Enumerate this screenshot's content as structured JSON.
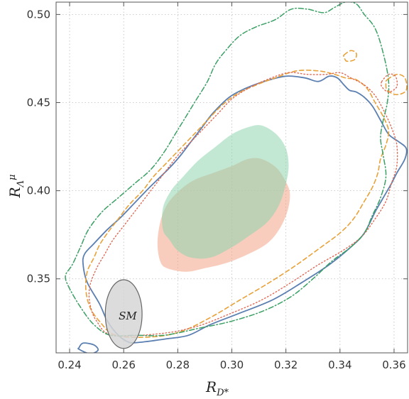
{
  "chart_data": {
    "type": "contour",
    "xlabel": {
      "main": "R",
      "sub": "D*"
    },
    "ylabel": {
      "main": "R",
      "sub": "Λ",
      "sup": "μ"
    },
    "xlim": [
      0.235,
      0.365
    ],
    "ylim": [
      0.308,
      0.507
    ],
    "xticks": [
      "0.24",
      "0.26",
      "0.28",
      "0.30",
      "0.32",
      "0.34",
      "0.36"
    ],
    "yticks": [
      "0.35",
      "0.40",
      "0.45",
      "0.50"
    ],
    "grid": true,
    "annotations": [
      {
        "text": "SM",
        "x": 0.2615,
        "y": 0.329
      }
    ],
    "sm_ellipse": {
      "center": [
        0.26,
        0.33
      ],
      "rx": 0.0068,
      "ry": 0.0195,
      "color": "#d6d6d6",
      "edge": "#666666"
    },
    "filled_regions": [
      {
        "color": "#f4a487",
        "opacity": 0.55,
        "points": [
          [
            0.276,
            0.356
          ],
          [
            0.2735,
            0.36
          ],
          [
            0.2725,
            0.37
          ],
          [
            0.2735,
            0.382
          ],
          [
            0.276,
            0.392
          ],
          [
            0.2805,
            0.4
          ],
          [
            0.286,
            0.406
          ],
          [
            0.293,
            0.41
          ],
          [
            0.3,
            0.414
          ],
          [
            0.306,
            0.418
          ],
          [
            0.311,
            0.418
          ],
          [
            0.3165,
            0.413
          ],
          [
            0.32,
            0.405
          ],
          [
            0.3215,
            0.398
          ],
          [
            0.3205,
            0.388
          ],
          [
            0.3175,
            0.378
          ],
          [
            0.313,
            0.37
          ],
          [
            0.306,
            0.364
          ],
          [
            0.298,
            0.359
          ],
          [
            0.29,
            0.356
          ],
          [
            0.283,
            0.354
          ]
        ]
      },
      {
        "color": "#8fd6ae",
        "opacity": 0.55,
        "points": [
          [
            0.277,
            0.372
          ],
          [
            0.2745,
            0.378
          ],
          [
            0.2745,
            0.39
          ],
          [
            0.2775,
            0.4
          ],
          [
            0.282,
            0.408
          ],
          [
            0.2875,
            0.417
          ],
          [
            0.294,
            0.425
          ],
          [
            0.3,
            0.432
          ],
          [
            0.306,
            0.436
          ],
          [
            0.311,
            0.437
          ],
          [
            0.3165,
            0.432
          ],
          [
            0.32,
            0.424
          ],
          [
            0.321,
            0.414
          ],
          [
            0.32,
            0.404
          ],
          [
            0.3175,
            0.392
          ],
          [
            0.313,
            0.382
          ],
          [
            0.306,
            0.374
          ],
          [
            0.299,
            0.367
          ],
          [
            0.292,
            0.362
          ],
          [
            0.285,
            0.362
          ],
          [
            0.28,
            0.366
          ]
        ]
      }
    ],
    "contours": [
      {
        "style": "solid",
        "color": "#5b7fb1",
        "width": 1.8,
        "points": [
          [
            0.258,
            0.318
          ],
          [
            0.254,
            0.326
          ],
          [
            0.251,
            0.336
          ],
          [
            0.2465,
            0.348
          ],
          [
            0.245,
            0.358
          ],
          [
            0.2455,
            0.364
          ],
          [
            0.249,
            0.37
          ],
          [
            0.254,
            0.378
          ],
          [
            0.259,
            0.385
          ],
          [
            0.264,
            0.393
          ],
          [
            0.269,
            0.401
          ],
          [
            0.273,
            0.407
          ],
          [
            0.277,
            0.413
          ],
          [
            0.281,
            0.42
          ],
          [
            0.285,
            0.428
          ],
          [
            0.289,
            0.436
          ],
          [
            0.293,
            0.444
          ],
          [
            0.299,
            0.453
          ],
          [
            0.305,
            0.458
          ],
          [
            0.312,
            0.462
          ],
          [
            0.32,
            0.465
          ],
          [
            0.327,
            0.464
          ],
          [
            0.332,
            0.462
          ],
          [
            0.336,
            0.465
          ],
          [
            0.339,
            0.464
          ],
          [
            0.3415,
            0.46
          ],
          [
            0.3435,
            0.457
          ],
          [
            0.346,
            0.456
          ],
          [
            0.349,
            0.453
          ],
          [
            0.352,
            0.448
          ],
          [
            0.355,
            0.44
          ],
          [
            0.358,
            0.432
          ],
          [
            0.3615,
            0.428
          ],
          [
            0.3645,
            0.424
          ],
          [
            0.364,
            0.418
          ],
          [
            0.361,
            0.41
          ],
          [
            0.359,
            0.404
          ],
          [
            0.356,
            0.396
          ],
          [
            0.353,
            0.388
          ],
          [
            0.349,
            0.376
          ],
          [
            0.344,
            0.368
          ],
          [
            0.336,
            0.358
          ],
          [
            0.326,
            0.348
          ],
          [
            0.315,
            0.338
          ],
          [
            0.302,
            0.33
          ],
          [
            0.292,
            0.324
          ],
          [
            0.284,
            0.318
          ],
          [
            0.276,
            0.316
          ],
          [
            0.266,
            0.314
          ],
          [
            0.262,
            0.314
          ]
        ]
      },
      {
        "style": "solid",
        "color": "#5b7fb1",
        "width": 1.8,
        "points": [
          [
            0.2435,
            0.31
          ],
          [
            0.2475,
            0.3075
          ],
          [
            0.2505,
            0.3095
          ],
          [
            0.249,
            0.3125
          ],
          [
            0.245,
            0.3135
          ],
          [
            0.2435,
            0.311
          ]
        ]
      },
      {
        "style": "dashed",
        "color": "#e8a23a",
        "width": 1.6,
        "points": [
          [
            0.257,
            0.318
          ],
          [
            0.251,
            0.326
          ],
          [
            0.2475,
            0.334
          ],
          [
            0.246,
            0.344
          ],
          [
            0.2465,
            0.354
          ],
          [
            0.249,
            0.362
          ],
          [
            0.251,
            0.369
          ],
          [
            0.254,
            0.376
          ],
          [
            0.258,
            0.384
          ],
          [
            0.262,
            0.392
          ],
          [
            0.267,
            0.4
          ],
          [
            0.271,
            0.408
          ],
          [
            0.276,
            0.416
          ],
          [
            0.281,
            0.424
          ],
          [
            0.286,
            0.432
          ],
          [
            0.291,
            0.44
          ],
          [
            0.296,
            0.448
          ],
          [
            0.302,
            0.455
          ],
          [
            0.309,
            0.46
          ],
          [
            0.316,
            0.464
          ],
          [
            0.324,
            0.468
          ],
          [
            0.332,
            0.468
          ],
          [
            0.338,
            0.466
          ],
          [
            0.342,
            0.464
          ],
          [
            0.346,
            0.463
          ],
          [
            0.35,
            0.458
          ],
          [
            0.353,
            0.45
          ],
          [
            0.356,
            0.442
          ],
          [
            0.358,
            0.434
          ],
          [
            0.357,
            0.426
          ],
          [
            0.355,
            0.418
          ],
          [
            0.354,
            0.41
          ],
          [
            0.352,
            0.402
          ],
          [
            0.349,
            0.394
          ],
          [
            0.345,
            0.384
          ],
          [
            0.34,
            0.376
          ],
          [
            0.333,
            0.368
          ],
          [
            0.324,
            0.358
          ],
          [
            0.314,
            0.348
          ],
          [
            0.303,
            0.338
          ],
          [
            0.292,
            0.328
          ],
          [
            0.281,
            0.32
          ],
          [
            0.27,
            0.317
          ]
        ]
      },
      {
        "style": "dotted",
        "color": "#e06a55",
        "width": 1.4,
        "points": [
          [
            0.256,
            0.318
          ],
          [
            0.25,
            0.326
          ],
          [
            0.2475,
            0.336
          ],
          [
            0.2475,
            0.346
          ],
          [
            0.25,
            0.356
          ],
          [
            0.253,
            0.364
          ],
          [
            0.256,
            0.372
          ],
          [
            0.26,
            0.38
          ],
          [
            0.264,
            0.388
          ],
          [
            0.268,
            0.396
          ],
          [
            0.272,
            0.404
          ],
          [
            0.276,
            0.412
          ],
          [
            0.28,
            0.42
          ],
          [
            0.285,
            0.428
          ],
          [
            0.29,
            0.436
          ],
          [
            0.295,
            0.444
          ],
          [
            0.3,
            0.452
          ],
          [
            0.306,
            0.458
          ],
          [
            0.313,
            0.463
          ],
          [
            0.321,
            0.467
          ],
          [
            0.328,
            0.466
          ],
          [
            0.335,
            0.466
          ],
          [
            0.34,
            0.467
          ],
          [
            0.344,
            0.464
          ],
          [
            0.349,
            0.46
          ],
          [
            0.353,
            0.454
          ],
          [
            0.356,
            0.446
          ],
          [
            0.359,
            0.436
          ],
          [
            0.361,
            0.426
          ],
          [
            0.361,
            0.414
          ],
          [
            0.359,
            0.404
          ],
          [
            0.357,
            0.394
          ],
          [
            0.353,
            0.384
          ],
          [
            0.348,
            0.374
          ],
          [
            0.341,
            0.366
          ],
          [
            0.332,
            0.358
          ],
          [
            0.322,
            0.348
          ],
          [
            0.311,
            0.338
          ],
          [
            0.299,
            0.33
          ],
          [
            0.287,
            0.323
          ],
          [
            0.274,
            0.319
          ]
        ]
      },
      {
        "style": "dashdot",
        "color": "#3aa064",
        "width": 1.5,
        "points": [
          [
            0.255,
            0.318
          ],
          [
            0.249,
            0.324
          ],
          [
            0.244,
            0.334
          ],
          [
            0.2395,
            0.346
          ],
          [
            0.2385,
            0.352
          ],
          [
            0.241,
            0.358
          ],
          [
            0.244,
            0.368
          ],
          [
            0.247,
            0.378
          ],
          [
            0.252,
            0.388
          ],
          [
            0.258,
            0.396
          ],
          [
            0.264,
            0.404
          ],
          [
            0.27,
            0.412
          ],
          [
            0.275,
            0.422
          ],
          [
            0.279,
            0.432
          ],
          [
            0.283,
            0.442
          ],
          [
            0.287,
            0.452
          ],
          [
            0.291,
            0.462
          ],
          [
            0.294,
            0.472
          ],
          [
            0.298,
            0.48
          ],
          [
            0.303,
            0.488
          ],
          [
            0.309,
            0.493
          ],
          [
            0.316,
            0.497
          ],
          [
            0.322,
            0.503
          ],
          [
            0.328,
            0.503
          ],
          [
            0.334,
            0.501
          ],
          [
            0.338,
            0.504
          ],
          [
            0.342,
            0.507
          ],
          [
            0.346,
            0.506
          ],
          [
            0.349,
            0.5
          ],
          [
            0.353,
            0.492
          ],
          [
            0.356,
            0.478
          ],
          [
            0.358,
            0.462
          ],
          [
            0.3575,
            0.45
          ],
          [
            0.356,
            0.44
          ],
          [
            0.355,
            0.43
          ],
          [
            0.356,
            0.42
          ],
          [
            0.357,
            0.408
          ],
          [
            0.355,
            0.396
          ],
          [
            0.352,
            0.386
          ],
          [
            0.349,
            0.376
          ],
          [
            0.344,
            0.368
          ],
          [
            0.337,
            0.36
          ],
          [
            0.33,
            0.35
          ],
          [
            0.322,
            0.34
          ],
          [
            0.312,
            0.332
          ],
          [
            0.3,
            0.326
          ],
          [
            0.288,
            0.322
          ],
          [
            0.275,
            0.318
          ],
          [
            0.264,
            0.318
          ]
        ]
      },
      {
        "style": "dashed",
        "color": "#e8a23a",
        "width": 1.6,
        "points": [
          [
            0.3415,
            0.477
          ],
          [
            0.344,
            0.4795
          ],
          [
            0.346,
            0.478
          ],
          [
            0.3455,
            0.4745
          ],
          [
            0.3425,
            0.4735
          ],
          [
            0.3415,
            0.476
          ]
        ]
      },
      {
        "style": "dashed",
        "color": "#e8a23a",
        "width": 1.6,
        "points": [
          [
            0.3575,
            0.463
          ],
          [
            0.361,
            0.466
          ],
          [
            0.364,
            0.464
          ],
          [
            0.3645,
            0.457
          ],
          [
            0.361,
            0.4545
          ],
          [
            0.3575,
            0.457
          ],
          [
            0.357,
            0.461
          ]
        ]
      },
      {
        "style": "dotted",
        "color": "#e06a55",
        "width": 1.4,
        "points": [
          [
            0.3555,
            0.462
          ],
          [
            0.358,
            0.466
          ],
          [
            0.3605,
            0.465
          ],
          [
            0.361,
            0.459
          ],
          [
            0.358,
            0.456
          ],
          [
            0.3555,
            0.459
          ]
        ]
      }
    ]
  }
}
